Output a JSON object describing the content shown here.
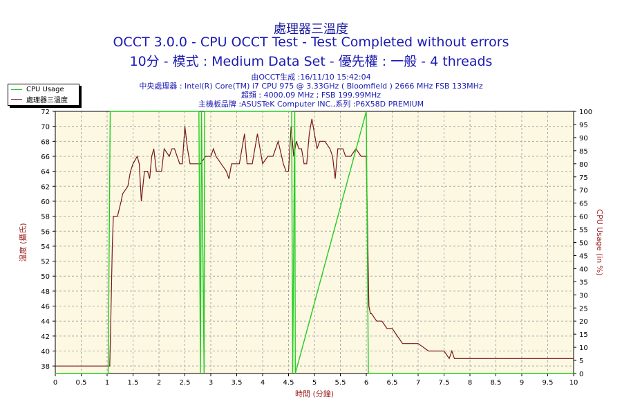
{
  "header": {
    "title_cn": "處理器三溫度",
    "title_main": "OCCT 3.0.0 - CPU OCCT Test - Test Completed without errors",
    "title_sub": "10分 - 模式 : Medium Data Set - 優先權 : 一般 - 4 threads"
  },
  "info": {
    "generated": "由OCCT生成 :16/11/10 15:42:04",
    "cpu": "中央處理器 : Intel(R) Core(TM) i7 CPU 975 @ 3.33GHz ( Bloomfield ) 2666 MHz FSB 133MHz",
    "oc": "超頻 : 4000.09 MHz ; FSB 199.99MHz",
    "board": "主機板品牌 :ASUSTeK Computer INC.,系列 :P6X58D PREMIUM"
  },
  "legend": [
    {
      "label": "CPU Usage",
      "color": "#22cc22"
    },
    {
      "label": "處理器三溫度",
      "color": "#7a1616"
    }
  ],
  "colors": {
    "plot_bg": "#fcf8e2",
    "grid": "#a8a8a8",
    "temp": "#7a1616",
    "usage": "#22cc22",
    "axis_label": "#a02828"
  },
  "chart_data": {
    "type": "line",
    "xlabel": "時間 (分鐘)",
    "ylabel_left": "溫度 (攝氏)",
    "ylabel_right": "CPU Usage (in %)",
    "xlim": [
      0,
      10
    ],
    "ylim_left": [
      37,
      72
    ],
    "ylim_right": [
      0,
      100
    ],
    "x_ticks": [
      "0",
      "0.5",
      "1",
      "1.5",
      "2",
      "2.5",
      "3",
      "3.5",
      "4",
      "4.5",
      "5",
      "5.5",
      "6",
      "6.5",
      "7",
      "7.5",
      "8",
      "8.5",
      "9",
      "9.5",
      "10"
    ],
    "y_left_ticks": [
      "38",
      "40",
      "42",
      "44",
      "46",
      "48",
      "50",
      "52",
      "54",
      "56",
      "58",
      "60",
      "62",
      "64",
      "66",
      "68",
      "70",
      "72"
    ],
    "y_right_ticks": [
      "0",
      "5",
      "10",
      "15",
      "20",
      "25",
      "30",
      "35",
      "40",
      "45",
      "50",
      "55",
      "60",
      "65",
      "70",
      "75",
      "80",
      "85",
      "90",
      "95",
      "100"
    ],
    "grid": true,
    "legend_position": "top-left",
    "series": [
      {
        "name": "處理器三溫度",
        "axis": "left",
        "x": [
          0,
          1.05,
          1.07,
          1.1,
          1.12,
          1.2,
          1.27,
          1.3,
          1.4,
          1.45,
          1.5,
          1.58,
          1.62,
          1.66,
          1.72,
          1.78,
          1.82,
          1.86,
          1.9,
          1.95,
          2.0,
          2.05,
          2.1,
          2.2,
          2.25,
          2.3,
          2.4,
          2.45,
          2.5,
          2.55,
          2.6,
          2.7,
          2.8,
          2.9,
          3.0,
          3.05,
          3.1,
          3.2,
          3.3,
          3.35,
          3.4,
          3.45,
          3.55,
          3.65,
          3.7,
          3.8,
          3.9,
          3.95,
          4.0,
          4.1,
          4.2,
          4.3,
          4.4,
          4.45,
          4.5,
          4.55,
          4.6,
          4.65,
          4.7,
          4.75,
          4.8,
          4.85,
          4.9,
          4.95,
          5.0,
          5.05,
          5.1,
          5.2,
          5.3,
          5.35,
          5.4,
          5.45,
          5.5,
          5.55,
          5.6,
          5.7,
          5.8,
          5.9,
          6.0,
          6.05,
          6.08,
          6.1,
          6.2,
          6.3,
          6.4,
          6.5,
          6.6,
          6.7,
          6.8,
          7.0,
          7.2,
          7.4,
          7.5,
          7.6,
          7.65,
          7.7,
          8.0,
          8.5,
          9.0,
          9.5,
          10.0
        ],
        "y": [
          38,
          38,
          44,
          54,
          58,
          58,
          60,
          61,
          62,
          64,
          65,
          66,
          65,
          60,
          64,
          64,
          63,
          66,
          67,
          64,
          64,
          64,
          67,
          66,
          67,
          67,
          65,
          65,
          70,
          67,
          65,
          65,
          65,
          66,
          66,
          67,
          66,
          65,
          64,
          63,
          65,
          65,
          65,
          69,
          65,
          65,
          69,
          67,
          65,
          66,
          66,
          68,
          65,
          64,
          64,
          70,
          66,
          68,
          67,
          67,
          65,
          65,
          69,
          71,
          69,
          67,
          68,
          68,
          67,
          66,
          63,
          67,
          67,
          67,
          66,
          66,
          67,
          66,
          66,
          46,
          45,
          45,
          44,
          44,
          43,
          43,
          42,
          41,
          41,
          41,
          40,
          40,
          40,
          39,
          40,
          39,
          39,
          39,
          39,
          39,
          39
        ]
      },
      {
        "name": "CPU Usage",
        "axis": "right",
        "x": [
          0,
          1.02,
          1.06,
          1.1,
          2.77,
          2.8,
          2.82,
          2.87,
          2.88,
          4.56,
          4.58,
          4.62,
          4.63,
          6.0,
          6.04,
          6.08,
          10.0
        ],
        "y": [
          0,
          0,
          100,
          100,
          100,
          0,
          100,
          0,
          100,
          100,
          0,
          100,
          0,
          100,
          0,
          0,
          0
        ]
      }
    ]
  }
}
